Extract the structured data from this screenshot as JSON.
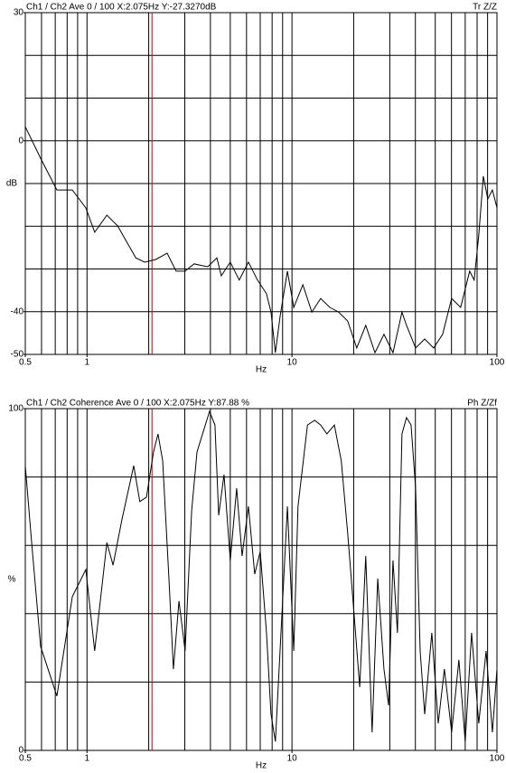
{
  "chart_data": [
    {
      "type": "line",
      "header_left": "Ch1 / Ch2  Ave 0 / 100  X:2.075Hz  Y:-27.3270dB",
      "header_right": "Tr Z/Z",
      "x_label": "Hz",
      "y_label": "dB",
      "xscale": "log",
      "xlim": [
        0.5,
        100
      ],
      "xticks": [
        0.5,
        1,
        10,
        100
      ],
      "xgrid": [
        0.6,
        0.7,
        0.8,
        0.9,
        1,
        2,
        3,
        4,
        5,
        6,
        7,
        8,
        9,
        10,
        20,
        30,
        40,
        50,
        60,
        70,
        80,
        90
      ],
      "ylim": [
        -50,
        30
      ],
      "yticks": [
        30,
        0,
        -40,
        -50
      ],
      "ygrid": [
        20,
        10,
        0,
        -10,
        -20,
        -30,
        -40
      ],
      "cursor_x": 2.075,
      "cursor_color": "#cc0000",
      "color": "#000000",
      "x": [
        0.5,
        0.594,
        0.713,
        0.848,
        0.987,
        1.09,
        1.25,
        1.41,
        1.73,
        1.91,
        2.16,
        2.46,
        2.72,
        3.01,
        3.33,
        3.88,
        4.3,
        4.52,
        5.0,
        5.53,
        6.13,
        6.79,
        7.51,
        7.9,
        8.3,
        8.75,
        9.5,
        10.2,
        11.3,
        12.5,
        13.8,
        15.3,
        16.9,
        18.7,
        20.7,
        22.9,
        25.4,
        28.1,
        31.1,
        34.4,
        36.2,
        40.1,
        44.4,
        49.1,
        54.3,
        60.1,
        66.5,
        73.6,
        77.4,
        81.5,
        85.8,
        90.2,
        95,
        100
      ],
      "values": [
        3.3,
        -4.1,
        -11.5,
        -11.5,
        -15.7,
        -21.4,
        -17.4,
        -19.9,
        -27.4,
        -28.4,
        -27.8,
        -26.3,
        -30.5,
        -30.5,
        -28.8,
        -29.5,
        -27.4,
        -31.6,
        -28.4,
        -32.6,
        -28.4,
        -32.6,
        -35.8,
        -40.1,
        -49.6,
        -41.1,
        -30.5,
        -39.0,
        -33.7,
        -40.1,
        -36.9,
        -39.0,
        -40.1,
        -42.2,
        -48.5,
        -43.2,
        -49.6,
        -45.3,
        -49.6,
        -40.1,
        -43.2,
        -48.5,
        -46.4,
        -48.5,
        -45.3,
        -36.9,
        -39.0,
        -30.5,
        -32.6,
        -22.1,
        -8.3,
        -13.6,
        -11.5,
        -15.7
      ]
    },
    {
      "type": "line",
      "header_left": "Ch1 / Ch2  Coherence Ave 0 / 100  X:2.075Hz  Y:87.88 %",
      "header_right": "Ph Z/Zf",
      "x_label": "Hz",
      "y_label": "%",
      "xscale": "log",
      "xlim": [
        0.5,
        100
      ],
      "xticks": [
        0.5,
        1,
        10,
        100
      ],
      "xgrid": [
        0.6,
        0.7,
        0.8,
        0.9,
        1,
        2,
        3,
        4,
        5,
        6,
        7,
        8,
        9,
        10,
        20,
        30,
        40,
        50,
        60,
        70,
        80,
        90
      ],
      "ylim": [
        0,
        100
      ],
      "yticks": [
        100,
        0
      ],
      "ygrid": [
        80,
        60,
        40,
        20
      ],
      "cursor_x": 2.075,
      "cursor_color": "#cc0000",
      "color": "#000000",
      "x": [
        0.5,
        0.537,
        0.594,
        0.713,
        0.848,
        0.987,
        1.09,
        1.25,
        1.34,
        1.48,
        1.69,
        1.81,
        1.95,
        2.11,
        2.22,
        2.34,
        2.51,
        2.64,
        2.81,
        3.01,
        3.24,
        3.44,
        3.96,
        4.21,
        4.39,
        4.66,
        5.0,
        5.37,
        5.71,
        6.13,
        6.58,
        7.0,
        7.51,
        7.9,
        8.3,
        8.93,
        9.5,
        10.2,
        10.7,
        11.9,
        12.9,
        13.8,
        14.8,
        16.1,
        17.4,
        18.7,
        20.1,
        21.4,
        22.9,
        24.6,
        26.2,
        28.1,
        29.6,
        31.1,
        32.7,
        34.4,
        36.2,
        38.1,
        40.1,
        42.2,
        44.4,
        48.1,
        51.7,
        55.4,
        60.1,
        65.2,
        70.0,
        75.2,
        81.5,
        88.5,
        95,
        100
      ],
      "values": [
        83.3,
        60.8,
        30.4,
        15.9,
        45.0,
        52.9,
        29.1,
        60.8,
        54.2,
        67.5,
        83.3,
        72.8,
        74.1,
        87.3,
        92.6,
        84.7,
        50.3,
        23.8,
        43.7,
        29.1,
        70.1,
        87.3,
        99.2,
        95.2,
        68.8,
        80.7,
        55.6,
        76.7,
        56.9,
        71.4,
        51.6,
        58.2,
        34.4,
        10.6,
        2.6,
        39.7,
        71.4,
        29.1,
        71.4,
        95.2,
        96.6,
        95.2,
        92.6,
        95.2,
        84.7,
        63.5,
        39.7,
        18.5,
        56.9,
        5.3,
        50.3,
        23.8,
        13.2,
        55.6,
        34.4,
        92.6,
        97.4,
        95.2,
        76.7,
        29.1,
        10.6,
        34.4,
        7.9,
        23.8,
        5.3,
        26.5,
        2.6,
        34.4,
        7.9,
        29.1,
        5.3,
        23.8
      ]
    }
  ]
}
